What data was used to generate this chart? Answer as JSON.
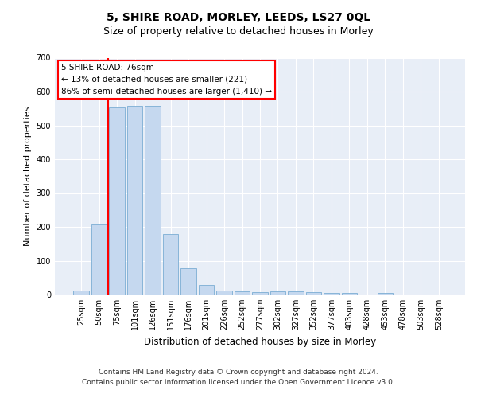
{
  "title": "5, SHIRE ROAD, MORLEY, LEEDS, LS27 0QL",
  "subtitle": "Size of property relative to detached houses in Morley",
  "xlabel": "Distribution of detached houses by size in Morley",
  "ylabel": "Number of detached properties",
  "bar_color": "#c5d8ef",
  "bar_edge_color": "#7aadd4",
  "background_color": "#e8eef7",
  "grid_color": "#ffffff",
  "categories": [
    "25sqm",
    "50sqm",
    "75sqm",
    "101sqm",
    "126sqm",
    "151sqm",
    "176sqm",
    "201sqm",
    "226sqm",
    "252sqm",
    "277sqm",
    "302sqm",
    "327sqm",
    "352sqm",
    "377sqm",
    "403sqm",
    "428sqm",
    "453sqm",
    "478sqm",
    "503sqm",
    "528sqm"
  ],
  "values": [
    12,
    207,
    553,
    557,
    557,
    180,
    77,
    28,
    12,
    10,
    7,
    10,
    10,
    6,
    5,
    5,
    0,
    5,
    0,
    0,
    0
  ],
  "ylim": [
    0,
    700
  ],
  "yticks": [
    0,
    100,
    200,
    300,
    400,
    500,
    600,
    700
  ],
  "property_label": "5 SHIRE ROAD: 76sqm",
  "annotation_line1": "← 13% of detached houses are smaller (221)",
  "annotation_line2": "86% of semi-detached houses are larger (1,410) →",
  "vline_x_index": 2,
  "footer_line1": "Contains HM Land Registry data © Crown copyright and database right 2024.",
  "footer_line2": "Contains public sector information licensed under the Open Government Licence v3.0.",
  "title_fontsize": 10,
  "subtitle_fontsize": 9,
  "tick_fontsize": 7,
  "ylabel_fontsize": 8,
  "xlabel_fontsize": 8.5,
  "annotation_fontsize": 7.5,
  "footer_fontsize": 6.5
}
